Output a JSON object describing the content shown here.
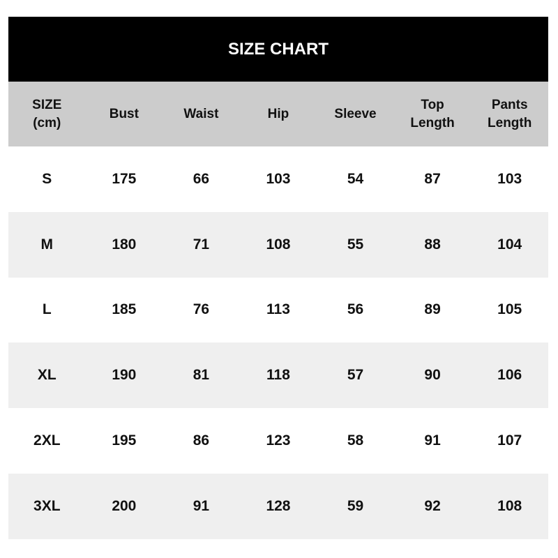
{
  "title": "SIZE CHART",
  "headers": [
    [
      "SIZE",
      "(cm)"
    ],
    [
      "Bust",
      ""
    ],
    [
      "Waist",
      ""
    ],
    [
      "Hip",
      ""
    ],
    [
      "Sleeve",
      ""
    ],
    [
      "Top",
      "Length"
    ],
    [
      "Pants",
      "Length"
    ]
  ],
  "rows": [
    [
      "S",
      "175",
      "66",
      "103",
      "54",
      "87",
      "103"
    ],
    [
      "M",
      "180",
      "71",
      "108",
      "55",
      "88",
      "104"
    ],
    [
      "L",
      "185",
      "76",
      "113",
      "56",
      "89",
      "105"
    ],
    [
      "XL",
      "190",
      "81",
      "118",
      "57",
      "90",
      "106"
    ],
    [
      "2XL",
      "195",
      "86",
      "123",
      "58",
      "91",
      "107"
    ],
    [
      "3XL",
      "200",
      "91",
      "128",
      "59",
      "92",
      "108"
    ]
  ],
  "colors": {
    "title_bg": "#000000",
    "header_bg": "#cccccc",
    "alt_row_bg": "#efefef"
  }
}
